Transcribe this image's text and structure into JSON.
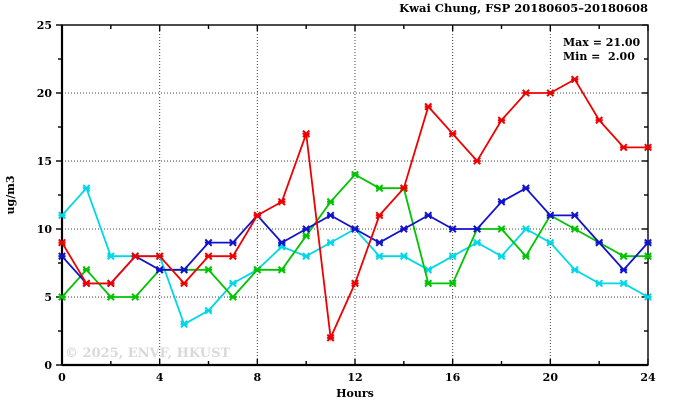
{
  "header": {
    "title": "Kwai Chung, FSP 20180605–20180608"
  },
  "annotation": {
    "max_label": "Max = 21.00",
    "min_label": "Min =  2.00"
  },
  "axes": {
    "x": {
      "label": "Hours",
      "major_ticks": [
        0,
        4,
        8,
        12,
        16,
        20,
        24
      ],
      "minor_ticks": [
        2,
        6,
        10,
        14,
        18,
        22
      ],
      "gridlines": [
        4,
        8,
        12,
        16,
        20
      ]
    },
    "y": {
      "label": "ug/m3",
      "major_ticks": [
        0,
        5,
        10,
        15,
        20,
        25
      ],
      "minor_ticks": [
        2.5,
        7.5,
        12.5,
        17.5,
        22.5
      ],
      "gridlines": [
        5,
        10,
        15,
        20
      ]
    }
  },
  "watermark": "© 2025, ENVF, HKUST",
  "chart_data": {
    "type": "line",
    "title": "Kwai Chung, FSP 20180605–20180608",
    "xlabel": "Hours",
    "ylabel": "ug/m3",
    "xlim": [
      0,
      24
    ],
    "ylim": [
      0,
      25
    ],
    "grid": "dotted",
    "legend_position": "none",
    "marker": "x",
    "x": [
      0,
      1,
      2,
      3,
      4,
      5,
      6,
      7,
      8,
      9,
      10,
      11,
      12,
      13,
      14,
      15,
      16,
      17,
      18,
      19,
      20,
      21,
      22,
      23,
      24
    ],
    "series": [
      {
        "name": "cyan-series",
        "color": "#00d7e8",
        "values": [
          11,
          13,
          8,
          8,
          8,
          3,
          4,
          6,
          7,
          8.7,
          8,
          9,
          10,
          8,
          8,
          7,
          8,
          9,
          8,
          10,
          9,
          7,
          6,
          6,
          5
        ]
      },
      {
        "name": "green-series",
        "color": "#00c400",
        "values": [
          5,
          7,
          5,
          5,
          7,
          7,
          7,
          5,
          7,
          7,
          9.5,
          12,
          14,
          13,
          13,
          6,
          6,
          10,
          10,
          8,
          11,
          10,
          9,
          8,
          8
        ]
      },
      {
        "name": "blue-series",
        "color": "#1212cc",
        "values": [
          8,
          6,
          6,
          8,
          7,
          7,
          9,
          9,
          11,
          9,
          10,
          11,
          10,
          9,
          10,
          11,
          10,
          10,
          12,
          13,
          11,
          11,
          9,
          7,
          9
        ]
      },
      {
        "name": "red-series",
        "color": "#ee0000",
        "values": [
          9,
          6,
          6,
          8,
          8,
          6,
          8,
          8,
          11,
          12,
          17,
          2,
          6,
          11,
          13,
          19,
          17,
          15,
          18,
          20,
          20,
          21,
          18,
          16,
          16
        ]
      }
    ],
    "annotations": {
      "max": 21.0,
      "min": 2.0
    }
  }
}
